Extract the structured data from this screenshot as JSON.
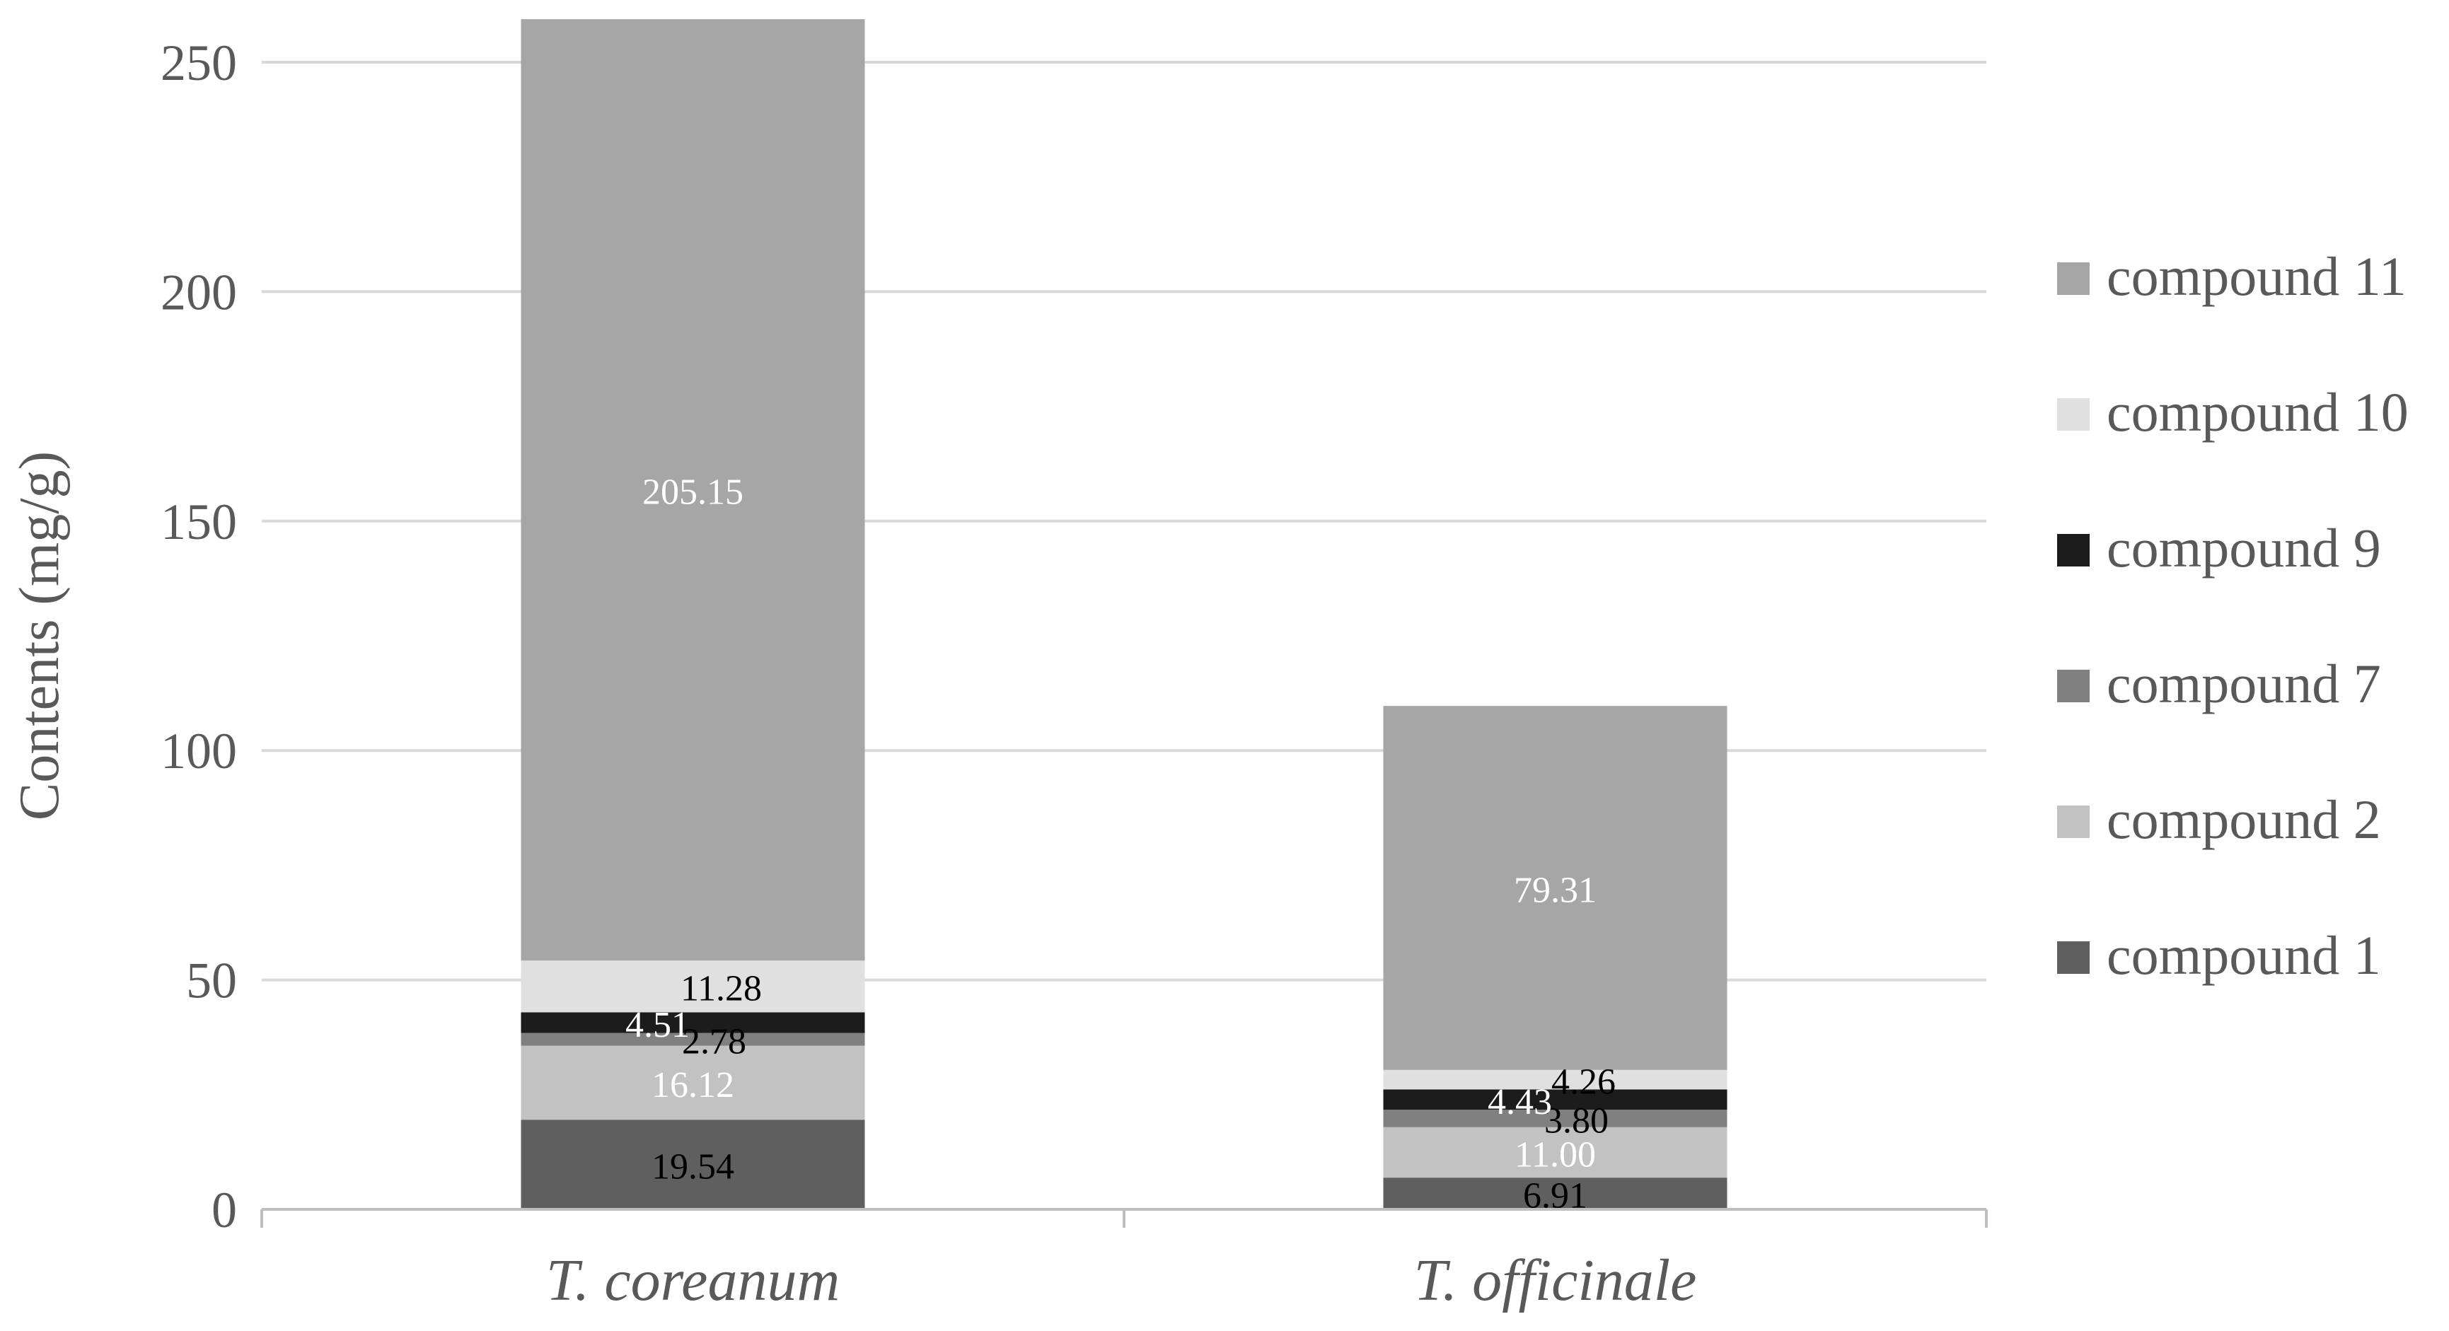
{
  "chart_data": {
    "type": "bar",
    "stacked": true,
    "categories": [
      "T. coreanum",
      "T. officinale"
    ],
    "series": [
      {
        "name": "compound 1",
        "values": [
          19.54,
          6.91
        ],
        "labels": [
          "19.54",
          "6.91"
        ],
        "color": "#5f5f5f",
        "label_color": "#000000"
      },
      {
        "name": "compound 2",
        "values": [
          16.12,
          11.0
        ],
        "labels": [
          "16.12",
          "11.00"
        ],
        "color": "#c2c2c2",
        "label_color": "#ffffff"
      },
      {
        "name": "compound 7",
        "values": [
          2.78,
          3.8
        ],
        "labels": [
          "2.78",
          "3.80"
        ],
        "color": "#808080",
        "label_color": "#000000"
      },
      {
        "name": "compound 9",
        "values": [
          4.51,
          4.43
        ],
        "labels": [
          "4.51",
          "4.43"
        ],
        "color": "#1c1c1c",
        "label_color": "#ffffff"
      },
      {
        "name": "compound 10",
        "values": [
          11.28,
          4.26
        ],
        "labels": [
          "11.28",
          "4.26"
        ],
        "color": "#e0e0e0",
        "label_color": "#000000"
      },
      {
        "name": "compound 11",
        "values": [
          205.15,
          79.31
        ],
        "labels": [
          "205.15",
          "79.31"
        ],
        "color": "#a6a6a6",
        "label_color": "#ffffff"
      }
    ],
    "ylabel": "Contents (mg/g)",
    "xlabel": "",
    "title": "",
    "ylim": [
      0,
      250
    ],
    "yticks": [
      0,
      50,
      100,
      150,
      200,
      250
    ],
    "grid": true,
    "legend_position": "right",
    "colors": {
      "grid": "#d9d9d9",
      "axis": "#bfbfbf",
      "text": "#595959"
    }
  }
}
